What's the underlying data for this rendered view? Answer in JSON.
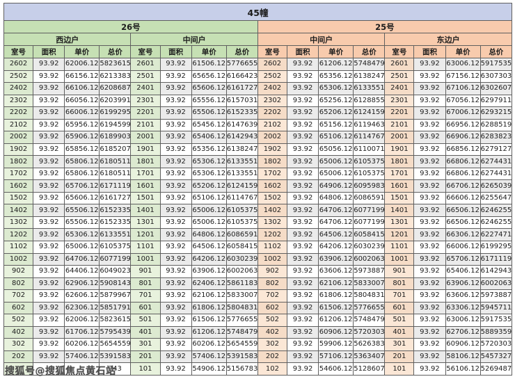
{
  "title": "45幢",
  "watermark": {
    "text": "搜狐号@搜狐焦点黄石站"
  },
  "colors": {
    "title_bg": "#c7cfe9",
    "green_header": "#c6e0b4",
    "peach_header": "#f8cbad",
    "green_room_odd": "#dcead0",
    "green_room_even": "#e8f2dd",
    "peach_room_odd": "#f5dcc7",
    "peach_room_even": "#fbe7d6",
    "stripe_gray": "#ebebeb",
    "row_white": "#ffffff"
  },
  "table": {
    "column_headers": [
      "室号",
      "面积",
      "单价",
      "总价"
    ],
    "buildings": [
      {
        "label": "26号",
        "theme": "green",
        "unit_types": [
          "西边户",
          "中间户"
        ]
      },
      {
        "label": "25号",
        "theme": "peach",
        "unit_types": [
          "中间户",
          "东边户"
        ]
      }
    ],
    "obscured_cell": {
      "group_index": 0,
      "row_index": 25,
      "visible_fragment": "743"
    },
    "groups": [
      {
        "building": "26号",
        "unit_type": "西边户",
        "theme": "green",
        "rows": [
          [
            "2602",
            "93.92",
            "62006.12",
            "5823615"
          ],
          [
            "2502",
            "93.92",
            "66156.12",
            "6213383"
          ],
          [
            "2402",
            "93.92",
            "66106.12",
            "6208687"
          ],
          [
            "2302",
            "93.92",
            "66056.12",
            "6203991"
          ],
          [
            "2202",
            "93.92",
            "66006.12",
            "6199295"
          ],
          [
            "2102",
            "93.92",
            "65956.12",
            "6194599"
          ],
          [
            "2002",
            "93.92",
            "65906.12",
            "6189903"
          ],
          [
            "1902",
            "93.92",
            "65856.12",
            "6185207"
          ],
          [
            "1802",
            "93.92",
            "65806.12",
            "6180511"
          ],
          [
            "1702",
            "93.92",
            "65806.12",
            "6180511"
          ],
          [
            "1602",
            "93.92",
            "65706.12",
            "6171119"
          ],
          [
            "1502",
            "93.92",
            "65606.12",
            "6161727"
          ],
          [
            "1402",
            "93.92",
            "65506.12",
            "6152335"
          ],
          [
            "1302",
            "93.92",
            "65506.12",
            "6152335"
          ],
          [
            "1202",
            "93.92",
            "65306.12",
            "6133551"
          ],
          [
            "1102",
            "93.92",
            "65006.12",
            "6105375"
          ],
          [
            "1002",
            "93.92",
            "64706.12",
            "6077199"
          ],
          [
            "902",
            "93.92",
            "64406.12",
            "6049023"
          ],
          [
            "802",
            "93.92",
            "62906.12",
            "5908143"
          ],
          [
            "702",
            "93.92",
            "62606.12",
            "5879967"
          ],
          [
            "602",
            "93.92",
            "62306.12",
            "5851791"
          ],
          [
            "502",
            "93.92",
            "62006.12",
            "5823615"
          ],
          [
            "402",
            "93.92",
            "61706.12",
            "5795439"
          ],
          [
            "302",
            "93.92",
            "60206.12",
            "5654559"
          ],
          [
            "202",
            "93.92",
            "57406.12",
            "5391583"
          ],
          [
            "",
            "",
            "",
            "743"
          ]
        ]
      },
      {
        "building": "26号",
        "unit_type": "中间户",
        "theme": "green",
        "rows": [
          [
            "2601",
            "93.92",
            "61506.12",
            "5776655"
          ],
          [
            "2501",
            "93.92",
            "65656.12",
            "6166423"
          ],
          [
            "2401",
            "93.92",
            "65606.12",
            "6161727"
          ],
          [
            "2301",
            "93.92",
            "65556.12",
            "6157031"
          ],
          [
            "2201",
            "93.92",
            "65506.12",
            "6152335"
          ],
          [
            "2101",
            "93.92",
            "65456.12",
            "6147639"
          ],
          [
            "2001",
            "93.92",
            "65406.12",
            "6142943"
          ],
          [
            "1901",
            "93.92",
            "65356.12",
            "6138247"
          ],
          [
            "1801",
            "93.92",
            "65306.12",
            "6133551"
          ],
          [
            "1701",
            "93.92",
            "65306.12",
            "6133551"
          ],
          [
            "1601",
            "93.92",
            "65206.12",
            "6124159"
          ],
          [
            "1501",
            "93.92",
            "65106.12",
            "6114767"
          ],
          [
            "1401",
            "93.92",
            "65006.12",
            "6105375"
          ],
          [
            "1301",
            "93.92",
            "65006.12",
            "6105375"
          ],
          [
            "1201",
            "93.92",
            "64806.12",
            "6086591"
          ],
          [
            "1101",
            "93.92",
            "64506.12",
            "6058415"
          ],
          [
            "1001",
            "93.92",
            "64206.12",
            "6030239"
          ],
          [
            "901",
            "93.92",
            "63906.12",
            "6002063"
          ],
          [
            "801",
            "93.92",
            "62406.12",
            "5861183"
          ],
          [
            "701",
            "93.92",
            "62106.12",
            "5833007"
          ],
          [
            "601",
            "93.92",
            "61806.12",
            "5804831"
          ],
          [
            "501",
            "93.92",
            "61506.12",
            "5776655"
          ],
          [
            "401",
            "93.92",
            "61206.12",
            "5748479"
          ],
          [
            "301",
            "93.92",
            "60206.12",
            "5654559"
          ],
          [
            "201",
            "93.92",
            "57406.12",
            "5391583"
          ],
          [
            "101",
            "93.92",
            "54906.12",
            "5156783"
          ]
        ]
      },
      {
        "building": "25号",
        "unit_type": "中间户",
        "theme": "peach",
        "rows": [
          [
            "2602",
            "93.92",
            "61206.12",
            "5748479"
          ],
          [
            "2502",
            "93.92",
            "65356.12",
            "6138247"
          ],
          [
            "2402",
            "93.92",
            "65306.12",
            "6133551"
          ],
          [
            "2302",
            "93.92",
            "65256.12",
            "6128855"
          ],
          [
            "2202",
            "93.92",
            "65206.12",
            "6124159"
          ],
          [
            "2102",
            "93.92",
            "65156.12",
            "6119463"
          ],
          [
            "2002",
            "93.92",
            "65106.12",
            "6114767"
          ],
          [
            "1902",
            "93.92",
            "65056.12",
            "6110071"
          ],
          [
            "1802",
            "93.92",
            "65006.12",
            "6105375"
          ],
          [
            "1702",
            "93.92",
            "65006.12",
            "6105375"
          ],
          [
            "1602",
            "93.92",
            "64906.12",
            "6095983"
          ],
          [
            "1502",
            "93.92",
            "64806.12",
            "6086591"
          ],
          [
            "1402",
            "93.92",
            "64706.12",
            "6077199"
          ],
          [
            "1302",
            "93.92",
            "64706.12",
            "6077199"
          ],
          [
            "1202",
            "93.92",
            "64506.12",
            "6058415"
          ],
          [
            "1102",
            "93.92",
            "64206.12",
            "6030239"
          ],
          [
            "1002",
            "93.92",
            "63906.12",
            "6002063"
          ],
          [
            "902",
            "93.92",
            "63606.12",
            "5973887"
          ],
          [
            "802",
            "93.92",
            "62106.12",
            "5833007"
          ],
          [
            "702",
            "93.92",
            "61806.12",
            "5804831"
          ],
          [
            "602",
            "93.92",
            "61506.12",
            "5776655"
          ],
          [
            "502",
            "93.92",
            "61206.12",
            "5748479"
          ],
          [
            "402",
            "93.92",
            "60906.12",
            "5720303"
          ],
          [
            "302",
            "93.92",
            "59906.12",
            "5626383"
          ],
          [
            "202",
            "93.92",
            "57106.12",
            "5363407"
          ],
          [
            "102",
            "93.92",
            "54606.12",
            "5128607"
          ]
        ]
      },
      {
        "building": "25号",
        "unit_type": "东边户",
        "theme": "peach",
        "rows": [
          [
            "2601",
            "93.92",
            "63006.12",
            "5917535"
          ],
          [
            "2501",
            "93.92",
            "67156.12",
            "6307303"
          ],
          [
            "2401",
            "93.92",
            "67106.12",
            "6302607"
          ],
          [
            "2301",
            "93.92",
            "67056.12",
            "6297911"
          ],
          [
            "2201",
            "93.92",
            "67006.12",
            "6293215"
          ],
          [
            "2101",
            "93.92",
            "66956.12",
            "6288519"
          ],
          [
            "2001",
            "93.92",
            "66906.12",
            "6283823"
          ],
          [
            "1901",
            "93.92",
            "66856.12",
            "6279127"
          ],
          [
            "1801",
            "93.92",
            "66806.12",
            "6274431"
          ],
          [
            "1701",
            "93.92",
            "66806.12",
            "6274431"
          ],
          [
            "1601",
            "93.92",
            "66706.12",
            "6265039"
          ],
          [
            "1501",
            "93.92",
            "66606.12",
            "6255647"
          ],
          [
            "1401",
            "93.92",
            "66506.12",
            "6246255"
          ],
          [
            "1301",
            "93.92",
            "66506.12",
            "6246255"
          ],
          [
            "1201",
            "93.92",
            "66306.12",
            "6227471"
          ],
          [
            "1101",
            "93.92",
            "66006.12",
            "6199295"
          ],
          [
            "1001",
            "93.92",
            "65706.12",
            "6171119"
          ],
          [
            "901",
            "93.92",
            "65406.12",
            "6142943"
          ],
          [
            "801",
            "93.92",
            "63906.12",
            "6002063"
          ],
          [
            "701",
            "93.92",
            "63606.12",
            "5973887"
          ],
          [
            "601",
            "93.92",
            "63306.12",
            "5945711"
          ],
          [
            "501",
            "93.92",
            "63006.12",
            "5917535"
          ],
          [
            "401",
            "93.92",
            "62706.12",
            "5889359"
          ],
          [
            "301",
            "93.92",
            "60906.12",
            "5720303"
          ],
          [
            "201",
            "93.92",
            "58106.12",
            "5457327"
          ],
          [
            "101",
            "93.92",
            "56106.12",
            "5269487"
          ]
        ]
      }
    ]
  }
}
